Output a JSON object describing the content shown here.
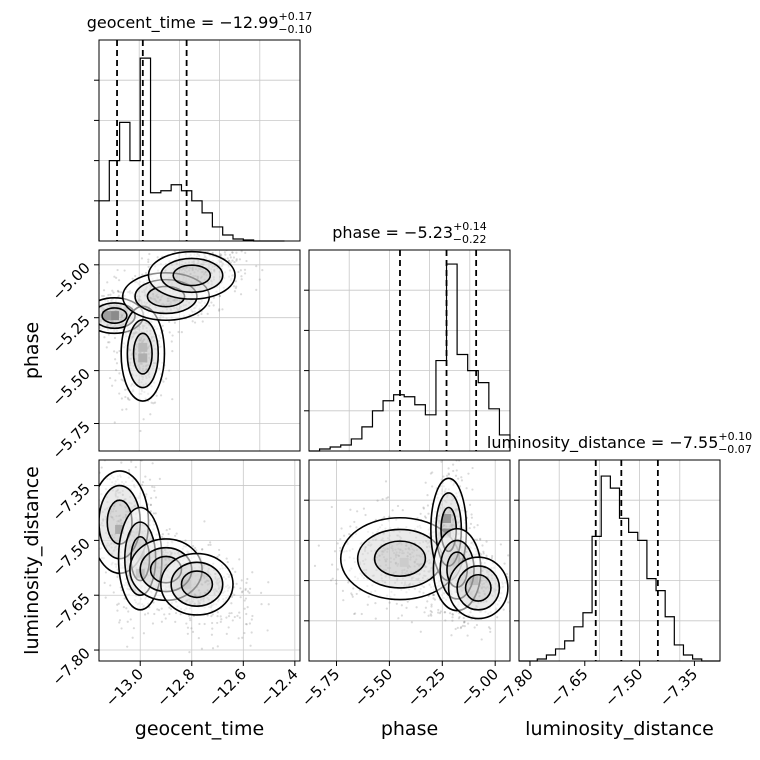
{
  "figure": {
    "type": "corner-plot",
    "parameters": [
      "geocent_time",
      "phase",
      "luminosity_distance"
    ]
  },
  "chart_data": [
    {
      "type": "bar",
      "panel": "geocent_time-histogram",
      "title": "geocent_time = −12.99",
      "title_upper": "+0.17",
      "title_lower": "−0.10",
      "xlim": [
        -13.16,
        -12.38
      ],
      "ylim": [
        0,
        1
      ],
      "grid": true,
      "bin_width": 0.04,
      "bin_starts": [
        -13.16,
        -13.12,
        -13.08,
        -13.04,
        -13.0,
        -12.96,
        -12.92,
        -12.88,
        -12.84,
        -12.8,
        -12.76,
        -12.72,
        -12.68,
        -12.64,
        -12.6,
        -12.56,
        -12.52,
        -12.48
      ],
      "values": [
        0.2,
        0.4,
        0.59,
        0.4,
        0.91,
        0.24,
        0.25,
        0.28,
        0.25,
        0.2,
        0.14,
        0.07,
        0.03,
        0.01,
        0.005,
        0.0,
        0.0,
        0.0
      ],
      "quantile_lines": [
        -13.09,
        -12.99,
        -12.82
      ]
    },
    {
      "type": "bar",
      "panel": "phase-histogram",
      "title": "phase = −5.23",
      "title_upper": "+0.14",
      "title_lower": "−0.22",
      "xlim": [
        -5.88,
        -4.93
      ],
      "ylim": [
        0,
        1
      ],
      "grid": true,
      "bin_width": 0.05,
      "bin_starts": [
        -5.88,
        -5.83,
        -5.78,
        -5.73,
        -5.68,
        -5.63,
        -5.58,
        -5.53,
        -5.48,
        -5.43,
        -5.38,
        -5.33,
        -5.28,
        -5.23,
        -5.18,
        -5.13,
        -5.08,
        -5.03,
        -4.98
      ],
      "values": [
        0.0,
        0.01,
        0.02,
        0.03,
        0.06,
        0.12,
        0.2,
        0.25,
        0.28,
        0.27,
        0.23,
        0.18,
        0.45,
        0.93,
        0.48,
        0.4,
        0.34,
        0.21,
        0.08
      ],
      "quantile_lines": [
        -5.45,
        -5.23,
        -5.09
      ]
    },
    {
      "type": "bar",
      "panel": "luminosity_distance-histogram",
      "title": "luminosity_distance = −7.55",
      "title_upper": "+0.10",
      "title_lower": "−0.07",
      "xlim": [
        -7.83,
        -7.28
      ],
      "ylim": [
        0,
        1
      ],
      "grid": true,
      "bin_width": 0.025,
      "bin_starts": [
        -7.83,
        -7.805,
        -7.78,
        -7.755,
        -7.73,
        -7.705,
        -7.68,
        -7.655,
        -7.63,
        -7.605,
        -7.58,
        -7.555,
        -7.53,
        -7.505,
        -7.48,
        -7.455,
        -7.43,
        -7.405,
        -7.38,
        -7.355,
        -7.33,
        -7.305
      ],
      "values": [
        0.0,
        0.0,
        0.01,
        0.03,
        0.06,
        0.1,
        0.17,
        0.24,
        0.62,
        0.92,
        0.86,
        0.71,
        0.64,
        0.6,
        0.41,
        0.35,
        0.22,
        0.08,
        0.03,
        0.01,
        0.0,
        0.0
      ],
      "quantile_lines": [
        -7.62,
        -7.55,
        -7.45
      ]
    },
    {
      "type": "scatter",
      "panel": "phase-vs-geocent_time",
      "xlim": [
        -13.16,
        -12.38
      ],
      "ylim": [
        -5.88,
        -4.93
      ],
      "grid": true,
      "ylabel": "phase",
      "ytick_labels": [
        "−5.00",
        "−5.25",
        "−5.50",
        "−5.75"
      ],
      "yticks": [
        -5.0,
        -5.25,
        -5.5,
        -5.75
      ],
      "clusters": [
        {
          "center": [
            -13.1,
            -5.24
          ],
          "spread": [
            0.04,
            0.03
          ],
          "n": 380
        },
        {
          "center": [
            -12.99,
            -5.42
          ],
          "spread": [
            0.03,
            0.08
          ],
          "n": 340
        },
        {
          "center": [
            -12.9,
            -5.15
          ],
          "spread": [
            0.06,
            0.04
          ],
          "n": 260
        },
        {
          "center": [
            -12.8,
            -5.05
          ],
          "spread": [
            0.06,
            0.04
          ],
          "n": 220
        },
        {
          "center": [
            -12.7,
            -4.99
          ],
          "spread": [
            0.04,
            0.03
          ],
          "n": 120
        }
      ],
      "dense_cells": [
        {
          "x": -13.1,
          "y": -5.24,
          "shade": "#000000"
        },
        {
          "x": -13.13,
          "y": -5.24,
          "shade": "#3a3a3a"
        },
        {
          "x": -12.99,
          "y": -5.44,
          "shade": "#7a7a7a"
        },
        {
          "x": -12.99,
          "y": -5.39,
          "shade": "#9a9a9a"
        }
      ]
    },
    {
      "type": "scatter",
      "panel": "luminosity_distance-vs-geocent_time",
      "xlim": [
        -13.16,
        -12.38
      ],
      "ylim": [
        -7.83,
        -7.28
      ],
      "grid": true,
      "xlabel": "geocent_time",
      "ylabel": "luminosity_distance",
      "xtick_labels": [
        "−13.0",
        "−12.8",
        "−12.6",
        "−12.4"
      ],
      "xticks": [
        -13.0,
        -12.8,
        -12.6,
        -12.4
      ],
      "ytick_labels": [
        "−7.35",
        "−7.50",
        "−7.65",
        "−7.80"
      ],
      "yticks": [
        -7.35,
        -7.5,
        -7.65,
        -7.8
      ],
      "clusters": [
        {
          "center": [
            -13.08,
            -7.45
          ],
          "spread": [
            0.04,
            0.05
          ],
          "n": 340
        },
        {
          "center": [
            -13.0,
            -7.55
          ],
          "spread": [
            0.03,
            0.05
          ],
          "n": 360
        },
        {
          "center": [
            -12.9,
            -7.58
          ],
          "spread": [
            0.05,
            0.03
          ],
          "n": 260
        },
        {
          "center": [
            -12.78,
            -7.62
          ],
          "spread": [
            0.05,
            0.03
          ],
          "n": 220
        },
        {
          "center": [
            -12.7,
            -7.67
          ],
          "spread": [
            0.05,
            0.04
          ],
          "n": 120
        }
      ],
      "dense_cells": [
        {
          "x": -13.0,
          "y": -7.59,
          "shade": "#000000"
        },
        {
          "x": -13.0,
          "y": -7.54,
          "shade": "#333333"
        },
        {
          "x": -13.08,
          "y": -7.47,
          "shade": "#6e6e6e"
        },
        {
          "x": -12.82,
          "y": -7.62,
          "shade": "#9a9a9a"
        }
      ]
    },
    {
      "type": "scatter",
      "panel": "luminosity_distance-vs-phase",
      "xlim": [
        -5.88,
        -4.93
      ],
      "ylim": [
        -7.83,
        -7.28
      ],
      "grid": true,
      "xlabel": "phase",
      "xtick_labels": [
        "−5.75",
        "−5.50",
        "−5.25",
        "−5.00"
      ],
      "xticks": [
        -5.75,
        -5.5,
        -5.25,
        -5.0
      ],
      "clusters": [
        {
          "center": [
            -5.45,
            -7.55
          ],
          "spread": [
            0.1,
            0.04
          ],
          "n": 420
        },
        {
          "center": [
            -5.22,
            -7.47
          ],
          "spread": [
            0.03,
            0.05
          ],
          "n": 320
        },
        {
          "center": [
            -5.18,
            -7.58
          ],
          "spread": [
            0.04,
            0.04
          ],
          "n": 300
        },
        {
          "center": [
            -5.08,
            -7.63
          ],
          "spread": [
            0.05,
            0.03
          ],
          "n": 220
        },
        {
          "center": [
            -5.3,
            -7.6
          ],
          "spread": [
            0.08,
            0.04
          ],
          "n": 160
        }
      ],
      "dense_cells": [
        {
          "x": -5.23,
          "y": -7.48,
          "shade": "#000000"
        },
        {
          "x": -5.23,
          "y": -7.44,
          "shade": "#2a2a2a"
        },
        {
          "x": -5.18,
          "y": -7.56,
          "shade": "#4a4a4a"
        },
        {
          "x": -5.1,
          "y": -7.61,
          "shade": "#333333"
        },
        {
          "x": -5.43,
          "y": -7.56,
          "shade": "#d8d8d8"
        }
      ]
    }
  ]
}
